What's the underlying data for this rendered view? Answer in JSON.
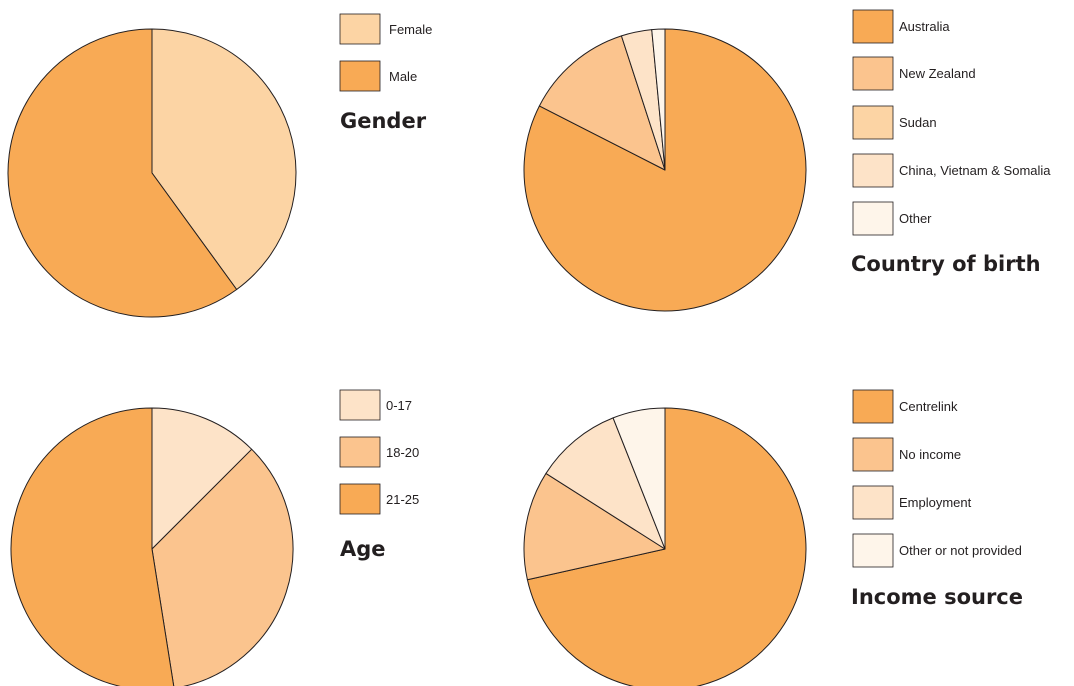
{
  "chart_data": [
    {
      "type": "pie",
      "title": "Gender",
      "legend_position": "right",
      "slices": [
        {
          "label": "Female",
          "value": 40,
          "color": "#fcd4a4"
        },
        {
          "label": "Male",
          "value": 60,
          "color": "#f8aa55"
        }
      ]
    },
    {
      "type": "pie",
      "title": "Country of birth",
      "legend_position": "right",
      "slices": [
        {
          "label": "Australia",
          "value": 82.5,
          "color": "#f8aa55"
        },
        {
          "label": "New Zealand",
          "value": 12.5,
          "color": "#fbc48e"
        },
        {
          "label": "Sudan",
          "value": 0,
          "color": "#fcd4a4"
        },
        {
          "label": "China, Vietnam & Somalia",
          "value": 3.5,
          "color": "#fde3c8"
        },
        {
          "label": "Other",
          "value": 1.5,
          "color": "#fef5ea"
        }
      ]
    },
    {
      "type": "pie",
      "title": "Age",
      "legend_position": "right",
      "slices": [
        {
          "label": "0-17",
          "value": 12.5,
          "color": "#fde3c8"
        },
        {
          "label": "18-20",
          "value": 35,
          "color": "#fbc48e"
        },
        {
          "label": "21-25",
          "value": 52.5,
          "color": "#f8aa55"
        }
      ]
    },
    {
      "type": "pie",
      "title": "Income source",
      "legend_position": "right",
      "slices": [
        {
          "label": "Centrelink",
          "value": 71.5,
          "color": "#f8aa55"
        },
        {
          "label": "No income",
          "value": 12.5,
          "color": "#fbc48e"
        },
        {
          "label": "Employment",
          "value": 10,
          "color": "#fde3c8"
        },
        {
          "label": "Other or not provided",
          "value": 6,
          "color": "#fef5ea"
        }
      ]
    }
  ]
}
